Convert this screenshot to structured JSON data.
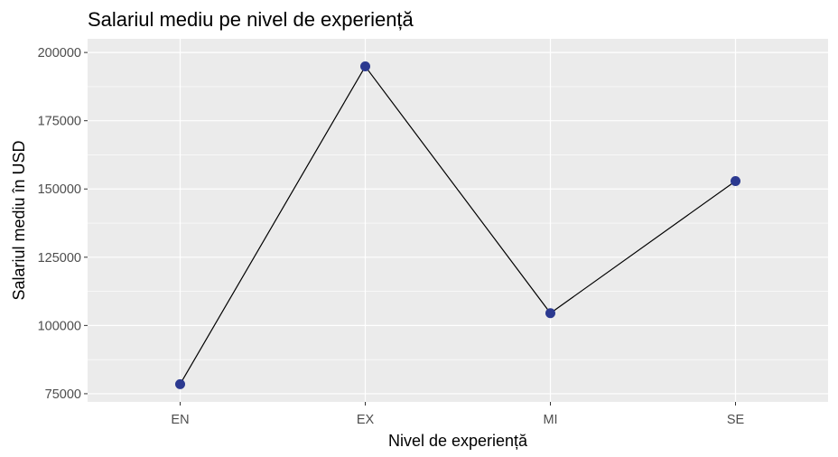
{
  "chart_data": {
    "type": "line",
    "title": "Salariul mediu pe nivel de experiență",
    "xlabel": "Nivel de experiență",
    "ylabel": "Salariul mediu în USD",
    "categories": [
      "EN",
      "EX",
      "MI",
      "SE"
    ],
    "values": [
      78500,
      194900,
      104500,
      152900
    ],
    "yticks": [
      75000,
      100000,
      125000,
      150000,
      175000,
      200000
    ],
    "ytick_labels": [
      "75000",
      "100000",
      "125000",
      "150000",
      "175000",
      "200000"
    ],
    "ylim": [
      72000,
      205000
    ],
    "grid": true,
    "legend": "none",
    "colors": {
      "panel": "#EBEBEB",
      "grid": "#FFFFFF",
      "line": "#000000",
      "point": "#2B3990",
      "tick": "#333333"
    }
  }
}
